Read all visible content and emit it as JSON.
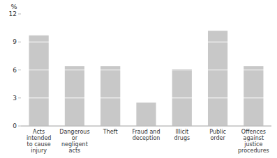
{
  "chart_data": {
    "type": "bar",
    "y_label": "%",
    "categories": [
      "Acts\nintended\nto cause\ninjury",
      "Dangerous\nor\nnegligent\nacts",
      "Theft",
      "Fraud and\ndeception",
      "Illicit\ndrugs",
      "Public\norder",
      "Offences\nagainst\njustice\nprocedures"
    ],
    "values": [
      9.7,
      6.4,
      6.4,
      2.5,
      6.1,
      10.2,
      6.4
    ],
    "color": "#c8c8c8",
    "ylim": [
      0,
      12
    ],
    "yticks": [
      0,
      3,
      6,
      9,
      12
    ],
    "grid": true
  }
}
